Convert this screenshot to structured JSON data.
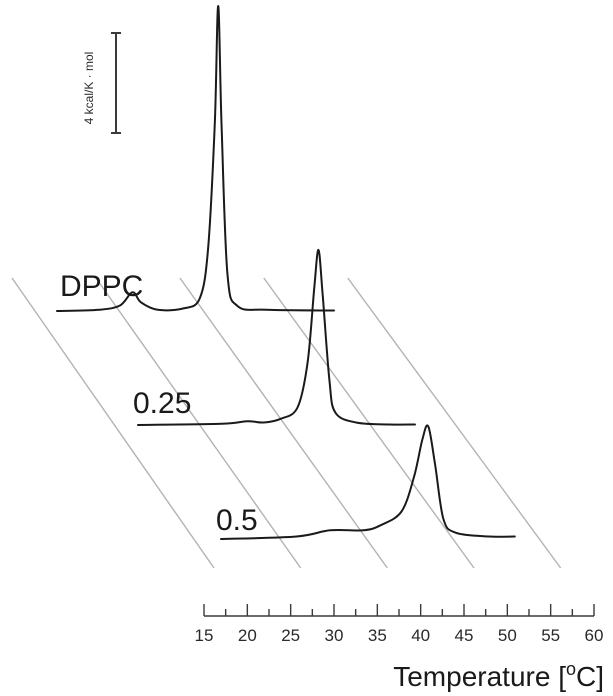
{
  "chart_data": {
    "type": "line",
    "title": "",
    "xlabel": {
      "main": "Temperature [",
      "sup": "o",
      "unit": "C]"
    },
    "ylabel": "",
    "scale_bar": {
      "label": "4 kcal/K · mol",
      "value": 4
    },
    "xlim": [
      15,
      60
    ],
    "x_ticks": [
      "15",
      "20",
      "25",
      "30",
      "35",
      "40",
      "45",
      "50",
      "55",
      "60"
    ],
    "grid": false,
    "legend": "none",
    "stroke_color": "#1a1a1a",
    "guide_color": "#b3b3b3",
    "series": [
      {
        "name": "DPPC",
        "points": [
          [
            15,
            0
          ],
          [
            20,
            0.05
          ],
          [
            22.5,
            0.22
          ],
          [
            24,
            0.75
          ],
          [
            25,
            0.35
          ],
          [
            27,
            0.05
          ],
          [
            30,
            0.1
          ],
          [
            32,
            0.5
          ],
          [
            33,
            2.5
          ],
          [
            33.8,
            7.5
          ],
          [
            34.2,
            12.2
          ],
          [
            34.6,
            7.5
          ],
          [
            35.3,
            1.5
          ],
          [
            36.5,
            0.2
          ],
          [
            40,
            0.05
          ],
          [
            48,
            0.02
          ]
        ]
      },
      {
        "name": "0.25",
        "points": [
          [
            15,
            0
          ],
          [
            25,
            0.05
          ],
          [
            28,
            0.15
          ],
          [
            30,
            0.1
          ],
          [
            32,
            0.25
          ],
          [
            34,
            0.7
          ],
          [
            35.2,
            2.5
          ],
          [
            36,
            5.5
          ],
          [
            36.5,
            7.0
          ],
          [
            37,
            5.2
          ],
          [
            37.8,
            1.8
          ],
          [
            38.5,
            0.5
          ],
          [
            41,
            0.1
          ],
          [
            45,
            0.02
          ],
          [
            48,
            0.02
          ]
        ]
      },
      {
        "name": "0.5",
        "points": [
          [
            15,
            0
          ],
          [
            24,
            0.1
          ],
          [
            28,
            0.35
          ],
          [
            32,
            0.35
          ],
          [
            34,
            0.55
          ],
          [
            36.5,
            1.1
          ],
          [
            38,
            2.5
          ],
          [
            39,
            4.0
          ],
          [
            39.7,
            4.5
          ],
          [
            40.5,
            3.0
          ],
          [
            41.5,
            0.8
          ],
          [
            43,
            0.25
          ],
          [
            47,
            0.1
          ],
          [
            50,
            0.1
          ]
        ]
      }
    ]
  }
}
